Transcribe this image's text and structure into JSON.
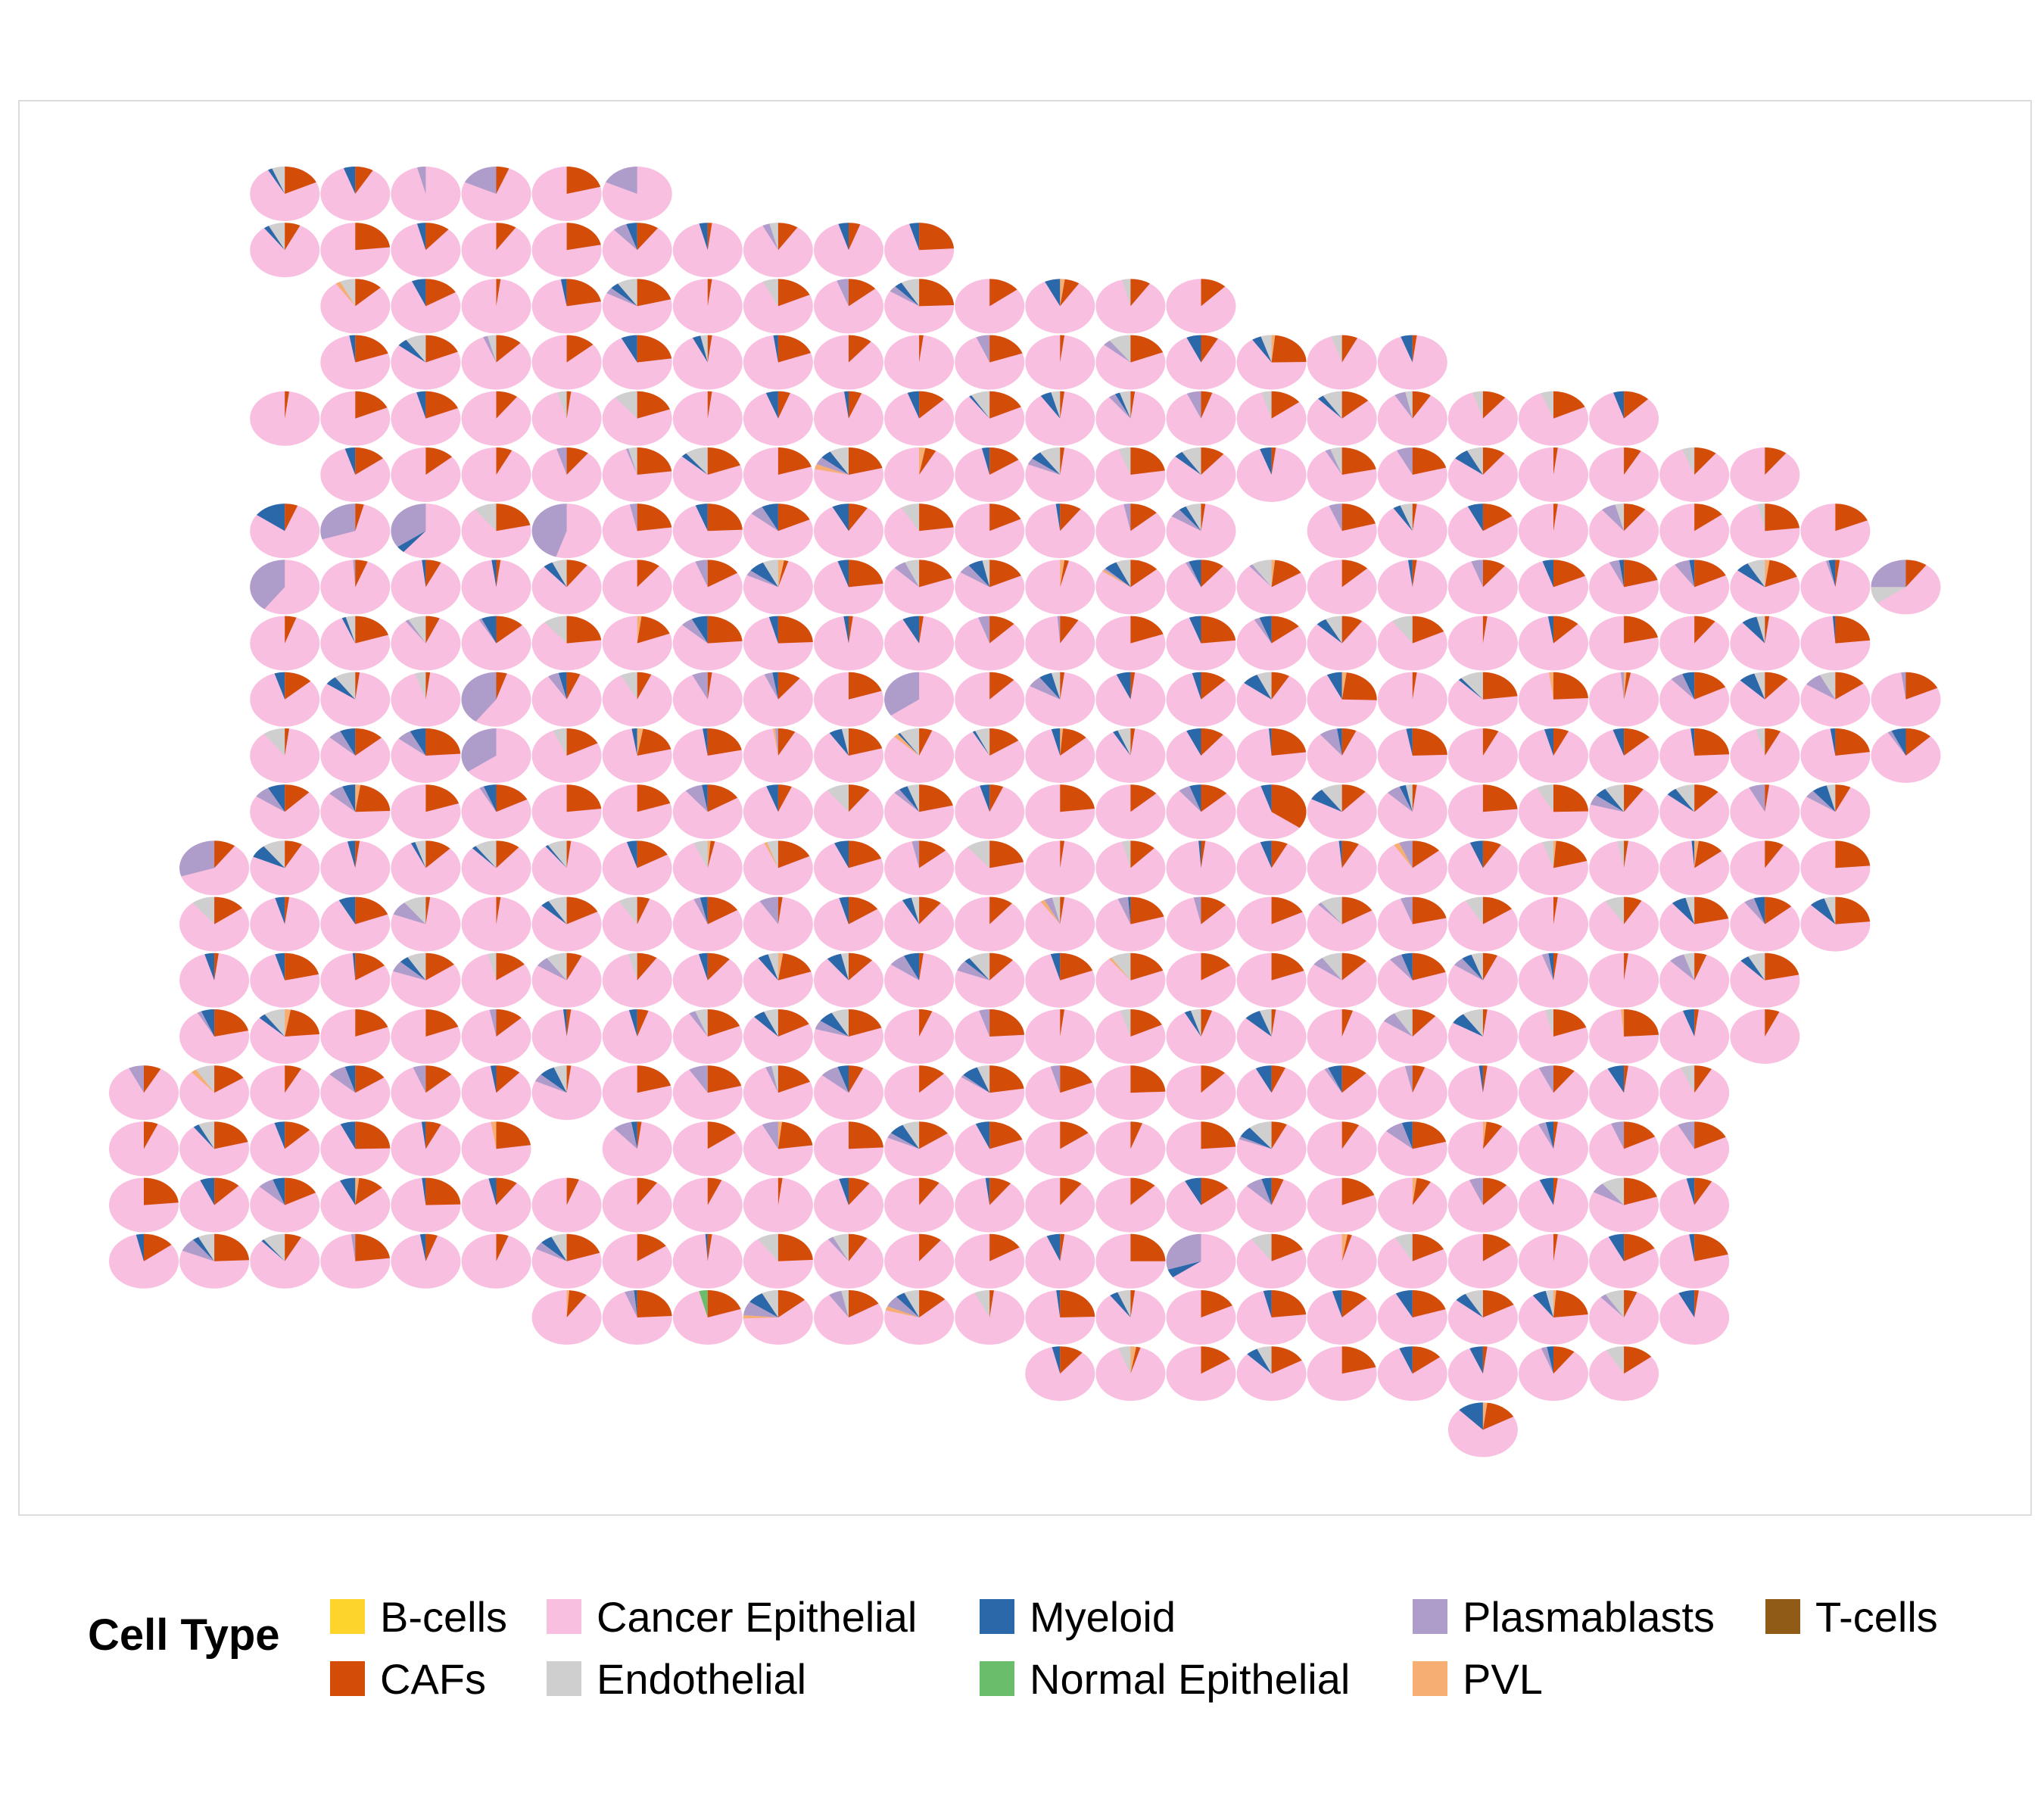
{
  "chart_data": {
    "type": "scatter-pie",
    "title": "",
    "xlabel": "",
    "ylabel": "",
    "grid": false,
    "legend": {
      "title": "Cell Type",
      "position": "bottom",
      "entries": [
        {
          "name": "B-cells",
          "color": "#FDD42B"
        },
        {
          "name": "CAFs",
          "color": "#D44D08"
        },
        {
          "name": "Cancer Epithelial",
          "color": "#F9BFE0"
        },
        {
          "name": "Endothelial",
          "color": "#CFCFCF"
        },
        {
          "name": "Myeloid",
          "color": "#2B68A9"
        },
        {
          "name": "Normal Epithelial",
          "color": "#6ABD6A"
        },
        {
          "name": "Plasmablasts",
          "color": "#AE9DCB"
        },
        {
          "name": "PVL",
          "color": "#F7AE72"
        },
        {
          "name": "T-cells",
          "color": "#8F5B16"
        }
      ]
    },
    "grid_spec": {
      "rows": 23,
      "cols": 26,
      "row_spans": [
        [
          [
            2,
            7
          ]
        ],
        [
          [
            2,
            11
          ]
        ],
        [
          [
            3,
            15
          ]
        ],
        [
          [
            3,
            18
          ]
        ],
        [
          [
            2,
            21
          ]
        ],
        [
          [
            3,
            23
          ]
        ],
        [
          [
            2,
            15
          ],
          [
            17,
            24
          ]
        ],
        [
          [
            2,
            24
          ],
          [
            25,
            25
          ]
        ],
        [
          [
            2,
            24
          ]
        ],
        [
          [
            2,
            25
          ]
        ],
        [
          [
            2,
            21
          ],
          [
            22,
            25
          ]
        ],
        [
          [
            2,
            24
          ]
        ],
        [
          [
            1,
            24
          ]
        ],
        [
          [
            1,
            24
          ]
        ],
        [
          [
            1,
            23
          ]
        ],
        [
          [
            1,
            23
          ]
        ],
        [
          [
            0,
            22
          ]
        ],
        [
          [
            0,
            5
          ],
          [
            7,
            22
          ]
        ],
        [
          [
            0,
            22
          ]
        ],
        [
          [
            0,
            22
          ]
        ],
        [
          [
            6,
            22
          ]
        ],
        [
          [
            13,
            21
          ]
        ],
        [
          [
            19,
            19
          ]
        ]
      ],
      "dominant": "Cancer Epithelial",
      "note_spots": [
        {
          "r": 0,
          "c": 2,
          "p": [
            [
              "Endothelial",
              0.06
            ],
            [
              "Myeloid",
              0.02
            ],
            [
              "CAFs",
              0.18
            ]
          ]
        },
        {
          "r": 0,
          "c": 4,
          "p": [
            [
              "Plasmablasts",
              0.04
            ]
          ]
        },
        {
          "r": 0,
          "c": 5,
          "p": [
            [
              "Plasmablasts",
              0.18
            ],
            [
              "CAFs",
              0.06
            ]
          ]
        },
        {
          "r": 0,
          "c": 7,
          "p": [
            [
              "Plasmablasts",
              0.18
            ]
          ]
        },
        {
          "r": 0,
          "c": 8,
          "p": [
            [
              "Endothelial",
              0.2
            ],
            [
              "Myeloid",
              0.05
            ],
            [
              "PVL",
              0.03
            ],
            [
              "CAFs",
              0.2
            ]
          ]
        },
        {
          "r": 6,
          "c": 2,
          "p": [
            [
              "Myeloid",
              0.15
            ],
            [
              "CAFs",
              0.06
            ]
          ]
        },
        {
          "r": 6,
          "c": 3,
          "p": [
            [
              "Plasmablasts",
              0.3
            ],
            [
              "CAFs",
              0.04
            ]
          ]
        },
        {
          "r": 6,
          "c": 4,
          "p": [
            [
              "Plasmablasts",
              0.35
            ],
            [
              "Myeloid",
              0.04
            ]
          ]
        },
        {
          "r": 6,
          "c": 6,
          "p": [
            [
              "Plasmablasts",
              0.45
            ]
          ]
        },
        {
          "r": 7,
          "c": 2,
          "p": [
            [
              "Plasmablasts",
              0.4
            ]
          ]
        },
        {
          "r": 7,
          "c": 25,
          "p": [
            [
              "Plasmablasts",
              0.25
            ],
            [
              "Endothelial",
              0.1
            ],
            [
              "CAFs",
              0.1
            ]
          ]
        },
        {
          "r": 9,
          "c": 5,
          "p": [
            [
              "Plasmablasts",
              0.4
            ],
            [
              "CAFs",
              0.05
            ]
          ]
        },
        {
          "r": 9,
          "c": 11,
          "p": [
            [
              "Plasmablasts",
              0.35
            ]
          ]
        },
        {
          "r": 10,
          "c": 5,
          "p": [
            [
              "Plasmablasts",
              0.35
            ]
          ]
        },
        {
          "r": 11,
          "c": 16,
          "p": [
            [
              "CAFs",
              0.35
            ],
            [
              "Myeloid",
              0.05
            ]
          ]
        },
        {
          "r": 12,
          "c": 1,
          "p": [
            [
              "Plasmablasts",
              0.3
            ],
            [
              "CAFs",
              0.1
            ]
          ]
        },
        {
          "r": 19,
          "c": 15,
          "p": [
            [
              "Plasmablasts",
              0.3
            ],
            [
              "Myeloid",
              0.05
            ]
          ]
        },
        {
          "r": 20,
          "c": 8,
          "p": [
            [
              "Normal Epithelial",
              0.04
            ],
            [
              "CAFs",
              0.2
            ]
          ]
        },
        {
          "r": 22,
          "c": 19,
          "p": [
            [
              "Myeloid",
              0.12
            ],
            [
              "PVL",
              0.02
            ],
            [
              "CAFs",
              0.15
            ]
          ]
        }
      ]
    }
  }
}
